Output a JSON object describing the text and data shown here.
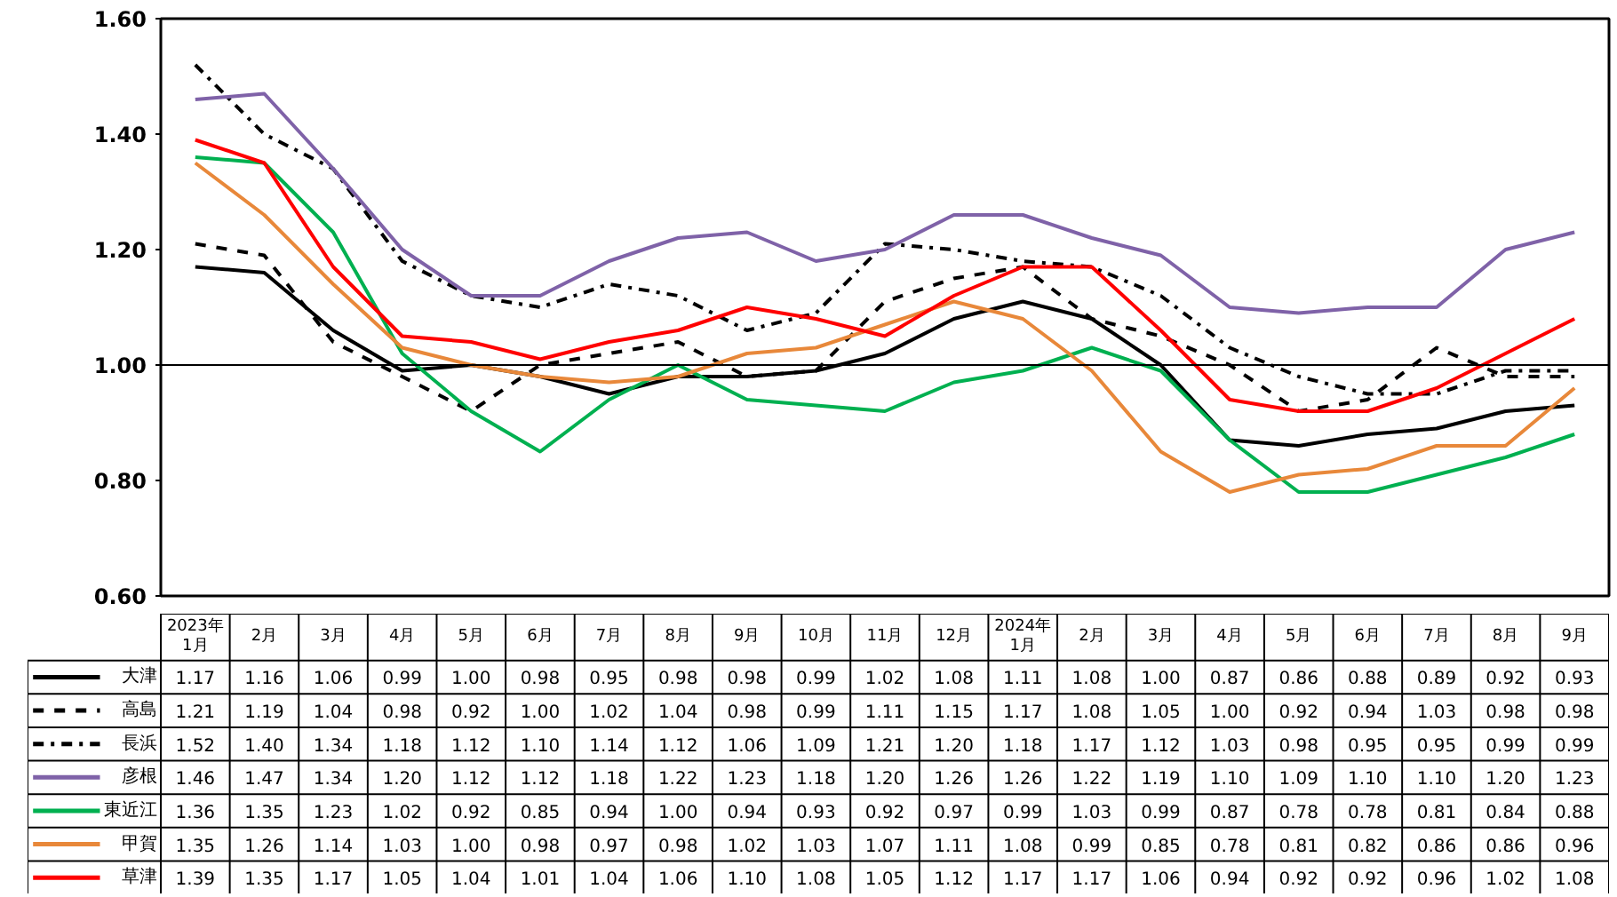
{
  "chart_data": {
    "type": "line",
    "categories": [
      "2023年\n1月",
      "2月",
      "3月",
      "4月",
      "5月",
      "6月",
      "7月",
      "8月",
      "9月",
      "10月",
      "11月",
      "12月",
      "2024年\n1月",
      "2月",
      "3月",
      "4月",
      "5月",
      "6月",
      "7月",
      "8月",
      "9月"
    ],
    "series": [
      {
        "name": "大津",
        "color": "#000000",
        "line_style": "solid",
        "values": [
          1.17,
          1.16,
          1.06,
          0.99,
          1.0,
          0.98,
          0.95,
          0.98,
          0.98,
          0.99,
          1.02,
          1.08,
          1.11,
          1.08,
          1.0,
          0.87,
          0.86,
          0.88,
          0.89,
          0.92,
          0.93
        ],
        "value_labels": [
          "1.17",
          "1.16",
          "1.06",
          "0.99",
          "1.00",
          "0.98",
          "0.95",
          "0.98",
          "0.98",
          "0.99",
          "1.02",
          "1.08",
          "1.11",
          "1.08",
          "1.00",
          "0.87",
          "0.86",
          "0.88",
          "0.89",
          "0.92",
          "0.93"
        ]
      },
      {
        "name": "高島",
        "color": "#000000",
        "line_style": "dashed",
        "values": [
          1.21,
          1.19,
          1.04,
          0.98,
          0.92,
          1.0,
          1.02,
          1.04,
          0.98,
          0.99,
          1.11,
          1.15,
          1.17,
          1.08,
          1.05,
          1.0,
          0.92,
          0.94,
          1.03,
          0.98,
          0.98
        ],
        "value_labels": [
          "1.21",
          "1.19",
          "1.04",
          "0.98",
          "0.92",
          "1.00",
          "1.02",
          "1.04",
          "0.98",
          "0.99",
          "1.11",
          "1.15",
          "1.17",
          "1.08",
          "1.05",
          "1.00",
          "0.92",
          "0.94",
          "1.03",
          "0.98",
          "0.98"
        ]
      },
      {
        "name": "長浜",
        "color": "#000000",
        "line_style": "dashdot",
        "values": [
          1.52,
          1.4,
          1.34,
          1.18,
          1.12,
          1.1,
          1.14,
          1.12,
          1.06,
          1.09,
          1.21,
          1.2,
          1.18,
          1.17,
          1.12,
          1.03,
          0.98,
          0.95,
          0.95,
          0.99,
          0.99
        ],
        "value_labels": [
          "1.52",
          "1.40",
          "1.34",
          "1.18",
          "1.12",
          "1.10",
          "1.14",
          "1.12",
          "1.06",
          "1.09",
          "1.21",
          "1.20",
          "1.18",
          "1.17",
          "1.12",
          "1.03",
          "0.98",
          "0.95",
          "0.95",
          "0.99",
          "0.99"
        ]
      },
      {
        "name": "彦根",
        "color": "#7f62a8",
        "line_style": "solid",
        "values": [
          1.46,
          1.47,
          1.34,
          1.2,
          1.12,
          1.12,
          1.18,
          1.22,
          1.23,
          1.18,
          1.2,
          1.26,
          1.26,
          1.22,
          1.19,
          1.1,
          1.09,
          1.1,
          1.1,
          1.2,
          1.23
        ],
        "value_labels": [
          "1.46",
          "1.47",
          "1.34",
          "1.20",
          "1.12",
          "1.12",
          "1.18",
          "1.22",
          "1.23",
          "1.18",
          "1.20",
          "1.26",
          "1.26",
          "1.22",
          "1.19",
          "1.10",
          "1.09",
          "1.10",
          "1.10",
          "1.20",
          "1.23"
        ]
      },
      {
        "name": "東近江",
        "color": "#00b050",
        "line_style": "solid",
        "values": [
          1.36,
          1.35,
          1.23,
          1.02,
          0.92,
          0.85,
          0.94,
          1.0,
          0.94,
          0.93,
          0.92,
          0.97,
          0.99,
          1.03,
          0.99,
          0.87,
          0.78,
          0.78,
          0.81,
          0.84,
          0.88
        ],
        "value_labels": [
          "1.36",
          "1.35",
          "1.23",
          "1.02",
          "0.92",
          "0.85",
          "0.94",
          "1.00",
          "0.94",
          "0.93",
          "0.92",
          "0.97",
          "0.99",
          "1.03",
          "0.99",
          "0.87",
          "0.78",
          "0.78",
          "0.81",
          "0.84",
          "0.88"
        ]
      },
      {
        "name": "甲賀",
        "color": "#e8883a",
        "line_style": "solid",
        "values": [
          1.35,
          1.26,
          1.14,
          1.03,
          1.0,
          0.98,
          0.97,
          0.98,
          1.02,
          1.03,
          1.07,
          1.11,
          1.08,
          0.99,
          0.85,
          0.78,
          0.81,
          0.82,
          0.86,
          0.86,
          0.96
        ],
        "value_labels": [
          "1.35",
          "1.26",
          "1.14",
          "1.03",
          "1.00",
          "0.98",
          "0.97",
          "0.98",
          "1.02",
          "1.03",
          "1.07",
          "1.11",
          "1.08",
          "0.99",
          "0.85",
          "0.78",
          "0.81",
          "0.82",
          "0.86",
          "0.86",
          "0.96"
        ]
      },
      {
        "name": "草津",
        "color": "#ff0000",
        "line_style": "solid",
        "values": [
          1.39,
          1.35,
          1.17,
          1.05,
          1.04,
          1.01,
          1.04,
          1.06,
          1.1,
          1.08,
          1.05,
          1.12,
          1.17,
          1.17,
          1.06,
          0.94,
          0.92,
          0.92,
          0.96,
          1.02,
          1.08
        ],
        "value_labels": [
          "1.39",
          "1.35",
          "1.17",
          "1.05",
          "1.04",
          "1.01",
          "1.04",
          "1.06",
          "1.10",
          "1.08",
          "1.05",
          "1.12",
          "1.17",
          "1.17",
          "1.06",
          "0.94",
          "0.92",
          "0.92",
          "0.96",
          "1.02",
          "1.08"
        ]
      }
    ],
    "ylim": [
      0.6,
      1.6
    ],
    "yticks": [
      {
        "value": 0.6,
        "label": "0.60"
      },
      {
        "value": 0.8,
        "label": "0.80"
      },
      {
        "value": 1.0,
        "label": "1.00"
      },
      {
        "value": 1.2,
        "label": "1.20"
      },
      {
        "value": 1.4,
        "label": "1.40"
      },
      {
        "value": 1.6,
        "label": "1.60"
      }
    ],
    "ref_lines": [
      {
        "axis": "y",
        "value": 1.0,
        "label": null,
        "color": "#000000"
      }
    ],
    "grid": false,
    "legend": "bottom",
    "tick_labels": "y",
    "marker": "none",
    "data_labels": true
  }
}
